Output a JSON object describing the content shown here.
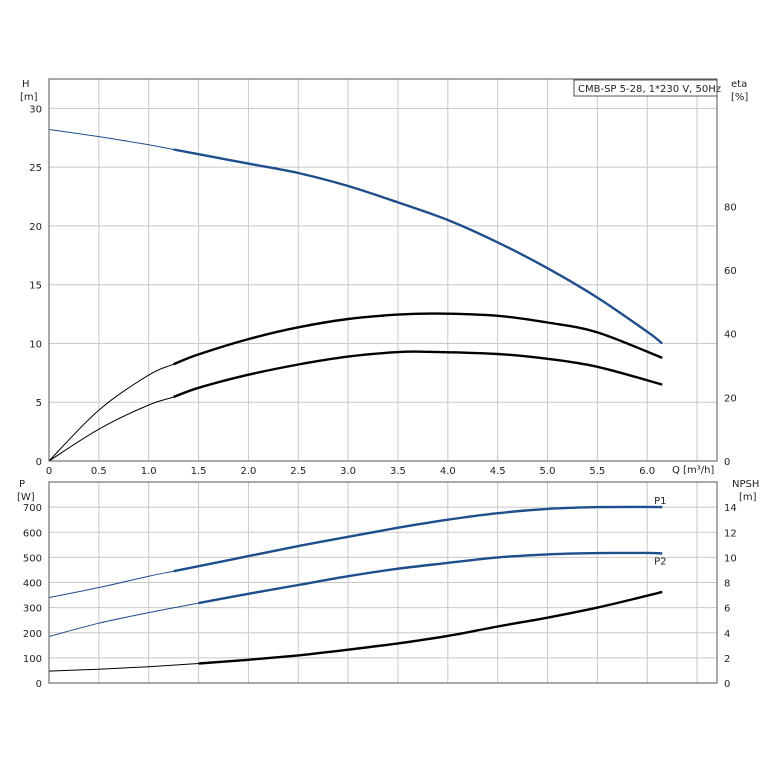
{
  "chart_data": [
    {
      "type": "line",
      "title": "CMB-SP 5-28, 1*230 V, 50Hz",
      "left_axis_label": "H",
      "left_axis_unit": "[m]",
      "right_axis_label": "eta",
      "right_axis_unit": "[%]",
      "xlabel": "Q [m³/h]",
      "xlim": [
        0,
        6.7
      ],
      "ylim": [
        0,
        32.5
      ],
      "x_ticks": [
        "0",
        "0.5",
        "1.0",
        "1.5",
        "2.0",
        "2.5",
        "3.0",
        "3.5",
        "4.0",
        "4.5",
        "5.0",
        "5.5",
        "6.0"
      ],
      "y_ticks": [
        "0",
        "5",
        "10",
        "15",
        "20",
        "25",
        "30"
      ],
      "right_ticks": [
        "0",
        "20",
        "40",
        "60",
        "80"
      ],
      "right_lim": [
        0,
        120
      ],
      "grid": true,
      "series": [
        {
          "axis": "left",
          "color": "#1f4e8c",
          "x": [
            0,
            0.5,
            1.0,
            1.25,
            1.5,
            2.0,
            2.5,
            3.0,
            3.5,
            4.0,
            4.5,
            5.0,
            5.5,
            6.0,
            6.15
          ],
          "y": [
            28.2,
            27.6,
            26.9,
            26.5,
            26.1,
            25.3,
            24.5,
            23.4,
            22.0,
            20.5,
            18.6,
            16.4,
            13.9,
            11.0,
            10.0
          ]
        },
        {
          "axis": "right",
          "color": "#000000",
          "x": [
            0,
            0.5,
            1.0,
            1.25,
            1.5,
            2.0,
            2.5,
            3.0,
            3.5,
            3.9,
            4.5,
            5.0,
            5.5,
            6.15
          ],
          "y": [
            0,
            16,
            27,
            30.4,
            33.5,
            38.3,
            42,
            44.6,
            46,
            46.3,
            45.6,
            43.5,
            40.4,
            32.4
          ]
        },
        {
          "axis": "right",
          "color": "#000000",
          "x": [
            0,
            0.5,
            1.0,
            1.25,
            1.5,
            2.0,
            2.5,
            3.0,
            3.5,
            3.8,
            4.5,
            5.0,
            5.5,
            6.15
          ],
          "y": [
            0,
            10,
            17.6,
            20.1,
            23,
            27.1,
            30.3,
            32.8,
            34.2,
            34.3,
            33.6,
            32.1,
            29.6,
            24.0
          ]
        }
      ]
    },
    {
      "type": "line",
      "left_axis_label": "P",
      "left_axis_unit": "[W]",
      "right_axis_label": "NPSH",
      "right_axis_unit": "[m]",
      "xlim": [
        0,
        6.7
      ],
      "ylim": [
        0,
        800
      ],
      "y_ticks": [
        "0",
        "100",
        "200",
        "300",
        "400",
        "500",
        "600",
        "700"
      ],
      "right_ticks": [
        "0",
        "2",
        "4",
        "6",
        "8",
        "10",
        "12",
        "14"
      ],
      "right_lim": [
        0,
        16
      ],
      "grid": true,
      "series": [
        {
          "name": "P1",
          "axis": "left",
          "color": "#1f4e8c",
          "x": [
            0,
            0.5,
            1.0,
            1.25,
            1.5,
            2.0,
            2.5,
            3.0,
            3.5,
            4.0,
            4.5,
            5.0,
            5.5,
            6.0,
            6.15
          ],
          "y": [
            340,
            380,
            425,
            445,
            465,
            505,
            545,
            582,
            618,
            650,
            676,
            693,
            700,
            701,
            700
          ]
        },
        {
          "name": "P2",
          "axis": "left",
          "color": "#1f4e8c",
          "x": [
            0,
            0.5,
            1.0,
            1.5,
            2.0,
            2.5,
            3.0,
            3.5,
            4.0,
            4.5,
            5.0,
            5.5,
            6.0,
            6.15
          ],
          "y": [
            185,
            238,
            280,
            318,
            355,
            390,
            425,
            455,
            478,
            500,
            512,
            517,
            518,
            516
          ]
        },
        {
          "axis": "right",
          "color": "#000000",
          "x": [
            0,
            0.5,
            1.0,
            1.5,
            2.0,
            2.5,
            3.0,
            3.5,
            4.0,
            4.5,
            5.0,
            5.5,
            6.0,
            6.15
          ],
          "y": [
            0.95,
            1.1,
            1.3,
            1.55,
            1.85,
            2.2,
            2.65,
            3.15,
            3.75,
            4.5,
            5.2,
            6.0,
            6.95,
            7.25
          ]
        }
      ]
    }
  ]
}
